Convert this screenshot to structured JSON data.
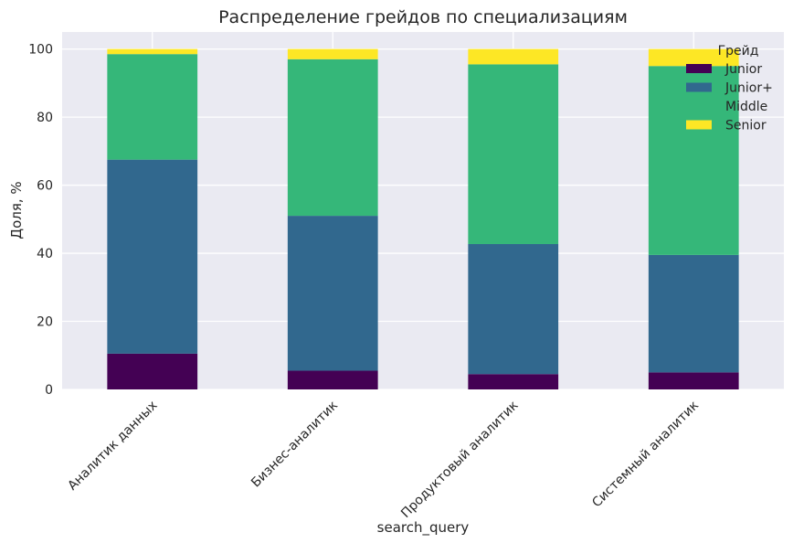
{
  "chart_data": {
    "type": "bar",
    "stacked": true,
    "title": "Распределение грейдов по специализациям",
    "xlabel": "search_query",
    "ylabel": "Доля, %",
    "ylim": [
      0,
      105
    ],
    "yticks": [
      0,
      20,
      40,
      60,
      80,
      100
    ],
    "grid": true,
    "legend_title": "Грейд",
    "legend_position": "top-right",
    "categories": [
      "Аналитик данных",
      "Бизнес-аналитик",
      "Продуктовый аналитик",
      "Системный аналитик"
    ],
    "series": [
      {
        "name": "Junior",
        "color": "#440154",
        "values": [
          10.5,
          5.5,
          4.5,
          5.0
        ]
      },
      {
        "name": "Junior+",
        "color": "#31688e",
        "values": [
          57.0,
          45.5,
          38.2,
          34.5
        ]
      },
      {
        "name": "Middle",
        "color": "#35b779",
        "values": [
          31.0,
          46.0,
          52.8,
          55.5
        ]
      },
      {
        "name": "Senior",
        "color": "#fde725",
        "values": [
          1.5,
          3.0,
          4.5,
          5.0
        ]
      }
    ]
  }
}
